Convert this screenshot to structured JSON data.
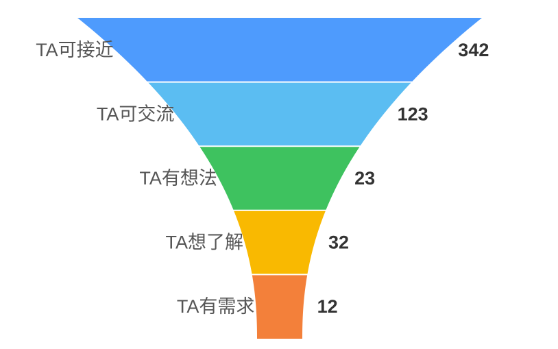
{
  "chart_data": {
    "type": "funnel",
    "title": "",
    "categories": [
      "TA可接近",
      "TA可交流",
      "TA有想法",
      "TA想了解",
      "TA有需求"
    ],
    "values": [
      342,
      123,
      23,
      32,
      12
    ],
    "colors": [
      "#4e9bfd",
      "#5bbdf2",
      "#3ec25f",
      "#f9b901",
      "#f3803a"
    ],
    "legend": "none",
    "grid": false
  }
}
